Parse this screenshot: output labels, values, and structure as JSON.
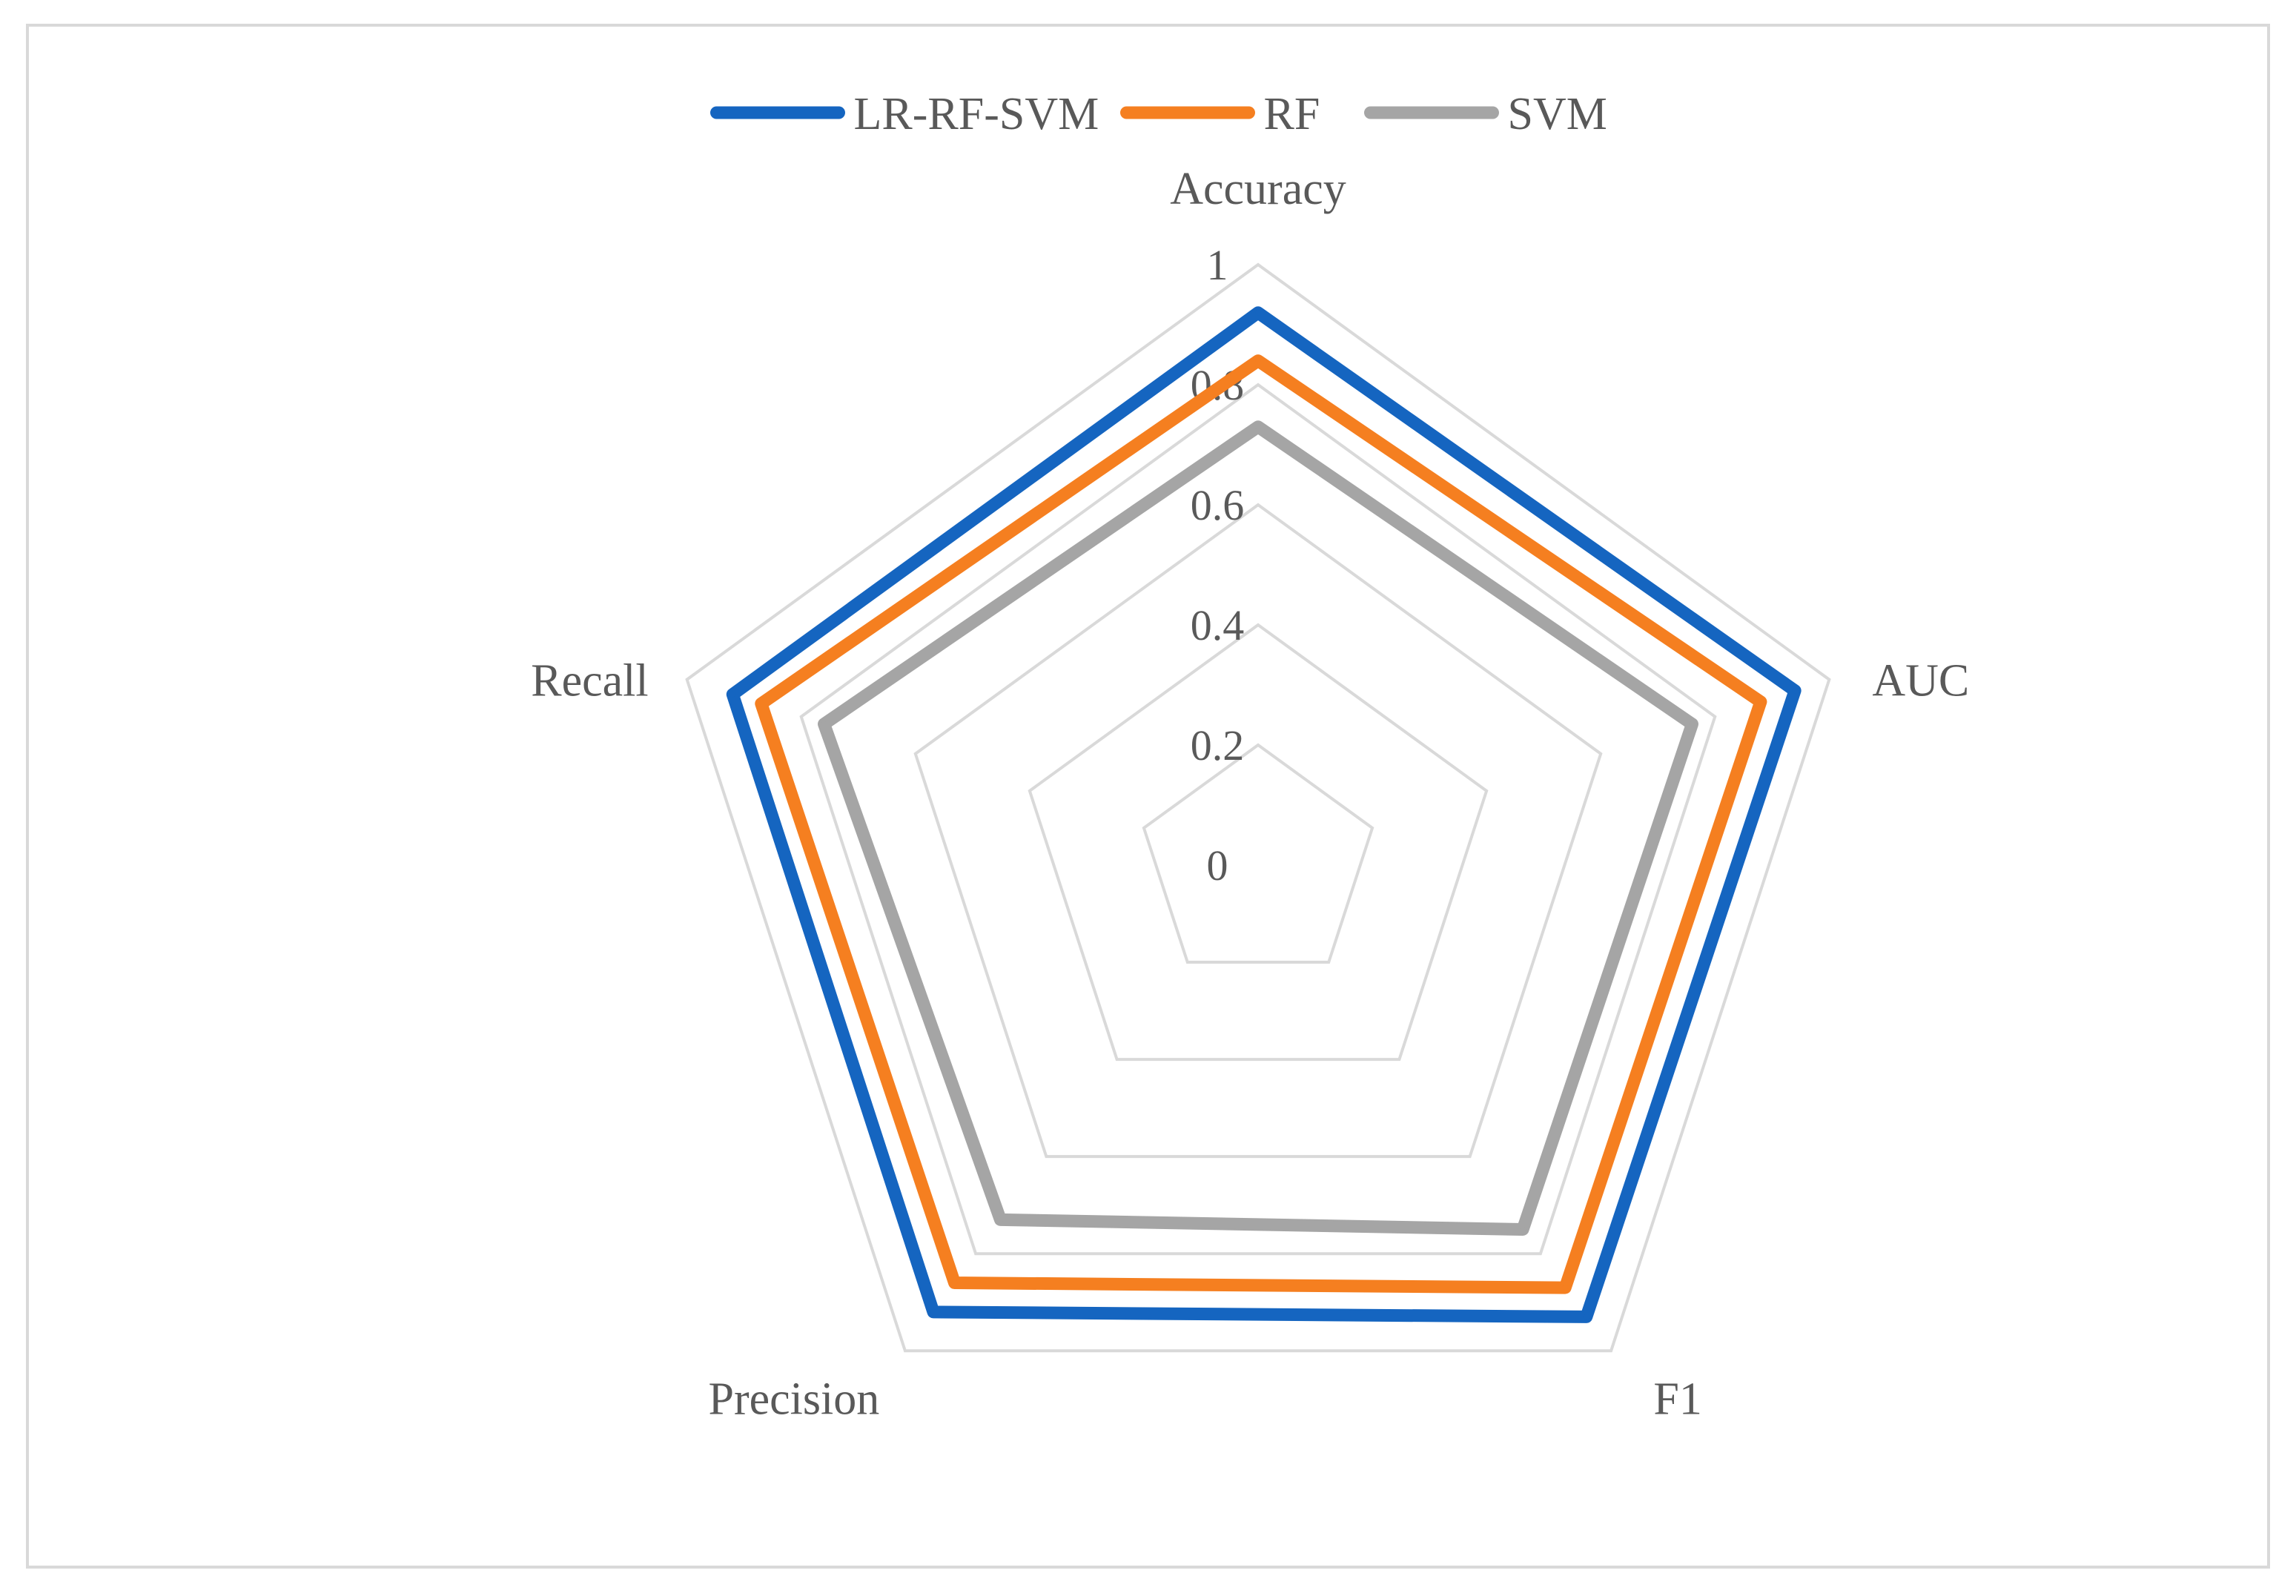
{
  "chart_data": {
    "type": "radar",
    "categories": [
      "Accuracy",
      "AUC",
      "F1",
      "Precision",
      "Recall"
    ],
    "r_ticks": [
      "0",
      "0.2",
      "0.4",
      "0.6",
      "0.8",
      "1"
    ],
    "rlim": [
      0,
      1
    ],
    "grid": true,
    "legend_position": "top",
    "series": [
      {
        "name": "LR-RF-SVM",
        "color": "#1565C0",
        "values": [
          0.92,
          0.94,
          0.93,
          0.92,
          0.92
        ]
      },
      {
        "name": "RF",
        "color": "#F57F20",
        "values": [
          0.84,
          0.88,
          0.87,
          0.86,
          0.87
        ]
      },
      {
        "name": "SVM",
        "color": "#A5A5A5",
        "values": [
          0.73,
          0.76,
          0.75,
          0.73,
          0.76
        ]
      }
    ]
  }
}
